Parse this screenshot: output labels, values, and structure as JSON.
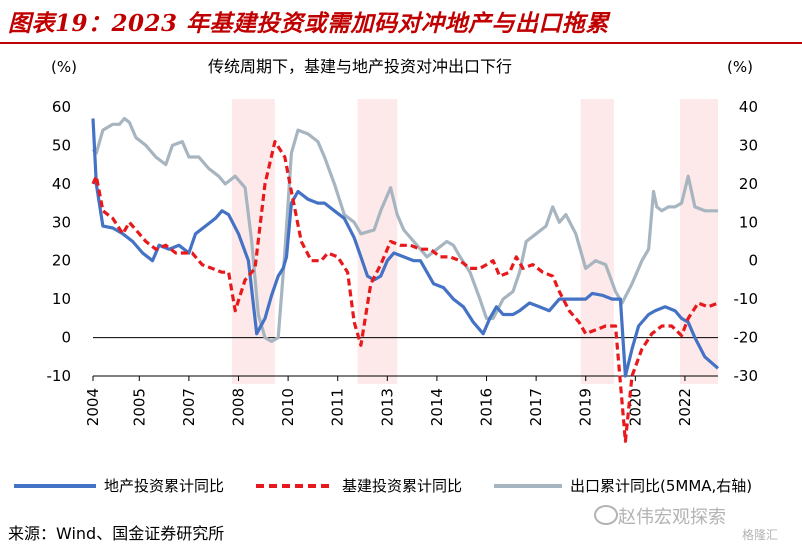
{
  "figure": {
    "title": "图表19：2023 年基建投资或需加码对冲地产与出口拖累",
    "source": "来源：Wind、国金证券研究所",
    "watermark": "赵伟宏观探索",
    "watermark2": "格隆汇"
  },
  "chart_data": {
    "type": "line",
    "title": "传统周期下，基建与地产投资对冲出口下行",
    "left_unit": "(%)",
    "right_unit": "(%)",
    "x_range": [
      2004.0,
      2022.9
    ],
    "x_tick_labels": [
      "2004",
      "2005",
      "2007",
      "2008",
      "2010",
      "2011",
      "2013",
      "2014",
      "2016",
      "2017",
      "2019",
      "2020",
      "2022"
    ],
    "x_tick_positions": [
      2004.0,
      2005.4,
      2006.9,
      2008.4,
      2009.9,
      2011.4,
      2012.9,
      2014.4,
      2015.9,
      2017.4,
      2018.9,
      2020.4,
      2021.9
    ],
    "ylim_left": [
      -10,
      60
    ],
    "yticks_left": [
      "-10",
      "0",
      "10",
      "20",
      "30",
      "40",
      "50",
      "60"
    ],
    "ylim_right": [
      -30,
      40
    ],
    "yticks_right": [
      "-30",
      "-20",
      "-10",
      "0",
      "10",
      "20",
      "30",
      "40"
    ],
    "colors": {
      "series1": "#4472c4",
      "series2": "#e8191c",
      "series3": "#a7b5c0",
      "shade": "#fde9e9"
    },
    "shaded_periods": [
      [
        2008.2,
        2009.5
      ],
      [
        2012.0,
        2013.2
      ],
      [
        2018.75,
        2019.75
      ],
      [
        2021.75,
        2022.9
      ]
    ],
    "series": [
      {
        "name": "地产投资累计同比",
        "axis": "left",
        "style": "solid",
        "points": [
          [
            2004.0,
            57
          ],
          [
            2004.1,
            40
          ],
          [
            2004.3,
            29
          ],
          [
            2004.6,
            28.5
          ],
          [
            2004.9,
            27
          ],
          [
            2005.2,
            25
          ],
          [
            2005.5,
            22
          ],
          [
            2005.8,
            20
          ],
          [
            2006.0,
            24
          ],
          [
            2006.3,
            23
          ],
          [
            2006.6,
            24
          ],
          [
            2006.9,
            22
          ],
          [
            2007.1,
            27
          ],
          [
            2007.4,
            29
          ],
          [
            2007.7,
            31
          ],
          [
            2007.9,
            33
          ],
          [
            2008.1,
            32
          ],
          [
            2008.4,
            27
          ],
          [
            2008.7,
            20
          ],
          [
            2008.95,
            1
          ],
          [
            2009.2,
            5
          ],
          [
            2009.4,
            11
          ],
          [
            2009.6,
            16
          ],
          [
            2009.75,
            18
          ],
          [
            2009.85,
            21
          ],
          [
            2010.0,
            35
          ],
          [
            2010.2,
            38
          ],
          [
            2010.5,
            36
          ],
          [
            2010.8,
            35
          ],
          [
            2011.0,
            35
          ],
          [
            2011.3,
            33
          ],
          [
            2011.6,
            31
          ],
          [
            2011.9,
            26
          ],
          [
            2012.1,
            21
          ],
          [
            2012.3,
            16
          ],
          [
            2012.5,
            15
          ],
          [
            2012.7,
            16
          ],
          [
            2012.9,
            20
          ],
          [
            2013.1,
            22
          ],
          [
            2013.4,
            21
          ],
          [
            2013.7,
            20
          ],
          [
            2013.9,
            20
          ],
          [
            2014.1,
            17
          ],
          [
            2014.3,
            14
          ],
          [
            2014.6,
            13
          ],
          [
            2014.9,
            10
          ],
          [
            2015.2,
            8
          ],
          [
            2015.5,
            4
          ],
          [
            2015.8,
            1
          ],
          [
            2016.0,
            5
          ],
          [
            2016.2,
            8
          ],
          [
            2016.4,
            6
          ],
          [
            2016.7,
            6
          ],
          [
            2016.9,
            7
          ],
          [
            2017.2,
            9
          ],
          [
            2017.5,
            8
          ],
          [
            2017.8,
            7
          ],
          [
            2018.1,
            10
          ],
          [
            2018.4,
            10
          ],
          [
            2018.7,
            10
          ],
          [
            2018.9,
            10
          ],
          [
            2019.1,
            11.5
          ],
          [
            2019.4,
            11
          ],
          [
            2019.7,
            10
          ],
          [
            2019.95,
            10
          ],
          [
            2020.1,
            -10
          ],
          [
            2020.3,
            -3
          ],
          [
            2020.5,
            3
          ],
          [
            2020.8,
            6
          ],
          [
            2021.0,
            7
          ],
          [
            2021.3,
            8
          ],
          [
            2021.6,
            7
          ],
          [
            2021.8,
            5
          ],
          [
            2022.0,
            4
          ],
          [
            2022.2,
            0
          ],
          [
            2022.5,
            -5
          ],
          [
            2022.9,
            -8
          ]
        ]
      },
      {
        "name": "基建投资累计同比",
        "axis": "left",
        "style": "dashed",
        "points": [
          [
            2004.0,
            40
          ],
          [
            2004.1,
            42
          ],
          [
            2004.3,
            33
          ],
          [
            2004.6,
            31
          ],
          [
            2004.9,
            27
          ],
          [
            2005.1,
            30
          ],
          [
            2005.4,
            27
          ],
          [
            2005.6,
            25
          ],
          [
            2005.9,
            23
          ],
          [
            2006.2,
            24
          ],
          [
            2006.5,
            22
          ],
          [
            2006.8,
            22
          ],
          [
            2007.0,
            22
          ],
          [
            2007.3,
            19
          ],
          [
            2007.6,
            18
          ],
          [
            2007.9,
            17
          ],
          [
            2008.1,
            17
          ],
          [
            2008.3,
            7
          ],
          [
            2008.6,
            15
          ],
          [
            2008.9,
            18
          ],
          [
            2009.2,
            40
          ],
          [
            2009.5,
            51
          ],
          [
            2009.8,
            47
          ],
          [
            2010.0,
            38
          ],
          [
            2010.3,
            25
          ],
          [
            2010.6,
            20
          ],
          [
            2010.9,
            20
          ],
          [
            2011.1,
            22
          ],
          [
            2011.4,
            21
          ],
          [
            2011.7,
            17
          ],
          [
            2011.9,
            4
          ],
          [
            2012.1,
            -2
          ],
          [
            2012.4,
            14
          ],
          [
            2012.7,
            19
          ],
          [
            2013.0,
            25
          ],
          [
            2013.3,
            24
          ],
          [
            2013.6,
            24
          ],
          [
            2013.9,
            23
          ],
          [
            2014.2,
            23
          ],
          [
            2014.5,
            21
          ],
          [
            2014.8,
            21
          ],
          [
            2015.1,
            20
          ],
          [
            2015.4,
            18
          ],
          [
            2015.7,
            18
          ],
          [
            2015.9,
            19
          ],
          [
            2016.1,
            20
          ],
          [
            2016.3,
            16
          ],
          [
            2016.6,
            17
          ],
          [
            2016.8,
            21
          ],
          [
            2017.0,
            18
          ],
          [
            2017.3,
            19
          ],
          [
            2017.6,
            17
          ],
          [
            2017.9,
            16
          ],
          [
            2018.1,
            12
          ],
          [
            2018.4,
            7
          ],
          [
            2018.7,
            4
          ],
          [
            2018.9,
            1
          ],
          [
            2019.2,
            2
          ],
          [
            2019.5,
            3
          ],
          [
            2019.8,
            3
          ],
          [
            2020.1,
            -27
          ],
          [
            2020.3,
            -10
          ],
          [
            2020.6,
            -3
          ],
          [
            2020.9,
            1
          ],
          [
            2021.2,
            3
          ],
          [
            2021.5,
            3
          ],
          [
            2021.8,
            0.5
          ],
          [
            2022.0,
            5
          ],
          [
            2022.3,
            9
          ],
          [
            2022.6,
            8
          ],
          [
            2022.9,
            9
          ]
        ]
      },
      {
        "name": "出口累计同比(5MMA,右轴)",
        "axis": "right",
        "style": "solid",
        "points": [
          [
            2004.0,
            29
          ],
          [
            2004.1,
            28
          ],
          [
            2004.3,
            34
          ],
          [
            2004.6,
            35.5
          ],
          [
            2004.8,
            35.5
          ],
          [
            2004.95,
            37
          ],
          [
            2005.1,
            36
          ],
          [
            2005.3,
            32
          ],
          [
            2005.6,
            30
          ],
          [
            2005.9,
            27
          ],
          [
            2006.2,
            25
          ],
          [
            2006.4,
            30
          ],
          [
            2006.7,
            31
          ],
          [
            2006.9,
            27
          ],
          [
            2007.2,
            27
          ],
          [
            2007.5,
            24
          ],
          [
            2007.8,
            22
          ],
          [
            2008.0,
            20
          ],
          [
            2008.3,
            22
          ],
          [
            2008.6,
            19
          ],
          [
            2008.8,
            5
          ],
          [
            2009.0,
            -14
          ],
          [
            2009.2,
            -20
          ],
          [
            2009.4,
            -21
          ],
          [
            2009.6,
            -20
          ],
          [
            2009.8,
            2
          ],
          [
            2010.0,
            28
          ],
          [
            2010.2,
            34
          ],
          [
            2010.5,
            33
          ],
          [
            2010.8,
            31
          ],
          [
            2011.0,
            27
          ],
          [
            2011.3,
            20
          ],
          [
            2011.6,
            12
          ],
          [
            2011.9,
            10
          ],
          [
            2012.1,
            7
          ],
          [
            2012.5,
            8
          ],
          [
            2012.7,
            13
          ],
          [
            2013.0,
            19
          ],
          [
            2013.2,
            12
          ],
          [
            2013.4,
            8
          ],
          [
            2013.7,
            5
          ],
          [
            2013.9,
            3
          ],
          [
            2014.1,
            1
          ],
          [
            2014.4,
            3
          ],
          [
            2014.7,
            5
          ],
          [
            2014.9,
            4
          ],
          [
            2015.1,
            1
          ],
          [
            2015.4,
            -3
          ],
          [
            2015.7,
            -10
          ],
          [
            2015.9,
            -15
          ],
          [
            2016.1,
            -15
          ],
          [
            2016.4,
            -10
          ],
          [
            2016.7,
            -8
          ],
          [
            2016.9,
            -3
          ],
          [
            2017.1,
            5
          ],
          [
            2017.4,
            7
          ],
          [
            2017.7,
            9
          ],
          [
            2017.9,
            14
          ],
          [
            2018.1,
            10
          ],
          [
            2018.3,
            12
          ],
          [
            2018.6,
            7
          ],
          [
            2018.9,
            -2
          ],
          [
            2019.2,
            0
          ],
          [
            2019.5,
            -1
          ],
          [
            2019.8,
            -8
          ],
          [
            2020.0,
            -11
          ],
          [
            2020.3,
            -6
          ],
          [
            2020.6,
            0
          ],
          [
            2020.8,
            3
          ],
          [
            2020.95,
            18
          ],
          [
            2021.05,
            14
          ],
          [
            2021.2,
            13
          ],
          [
            2021.4,
            14
          ],
          [
            2021.6,
            14
          ],
          [
            2021.8,
            15
          ],
          [
            2022.0,
            22
          ],
          [
            2022.2,
            14
          ],
          [
            2022.5,
            13
          ],
          [
            2022.9,
            13
          ]
        ]
      }
    ],
    "legend_position": "bottom"
  }
}
